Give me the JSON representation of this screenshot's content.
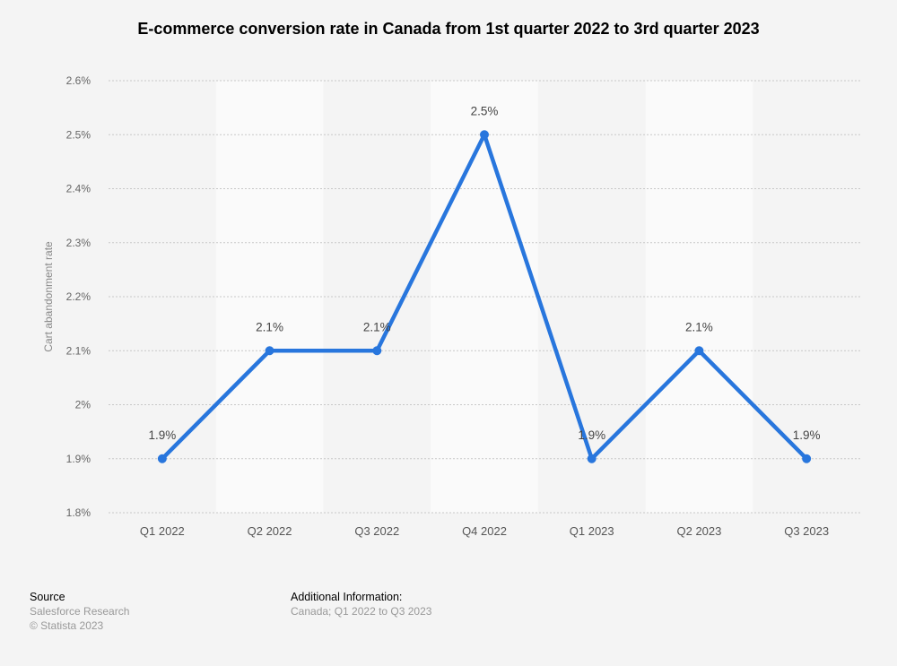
{
  "chart_data": {
    "type": "line",
    "title": "E-commerce conversion rate in Canada from 1st quarter 2022 to 3rd quarter 2023",
    "xlabel": "",
    "ylabel": "Cart abandonment rate",
    "categories": [
      "Q1 2022",
      "Q2 2022",
      "Q3 2022",
      "Q4 2022",
      "Q1 2023",
      "Q2 2023",
      "Q3 2023"
    ],
    "values": [
      1.9,
      2.1,
      2.1,
      2.5,
      1.9,
      2.1,
      1.9
    ],
    "data_labels": [
      "1.9%",
      "2.1%",
      "2.1%",
      "2.5%",
      "1.9%",
      "2.1%",
      "1.9%"
    ],
    "ylim": [
      1.8,
      2.6
    ],
    "yticks": [
      1.8,
      1.9,
      2.0,
      2.1,
      2.2,
      2.3,
      2.4,
      2.5,
      2.6
    ],
    "ytick_labels": [
      "1.8%",
      "1.9%",
      "2%",
      "2.1%",
      "2.2%",
      "2.3%",
      "2.4%",
      "2.5%",
      "2.6%"
    ],
    "grid": true,
    "line_color": "#2876dd",
    "band_color": "#fafafa"
  },
  "footer": {
    "source_heading": "Source",
    "source": "Salesforce Research",
    "copyright": "© Statista 2023",
    "info_heading": "Additional Information:",
    "info": "Canada; Q1 2022 to Q3 2023"
  }
}
